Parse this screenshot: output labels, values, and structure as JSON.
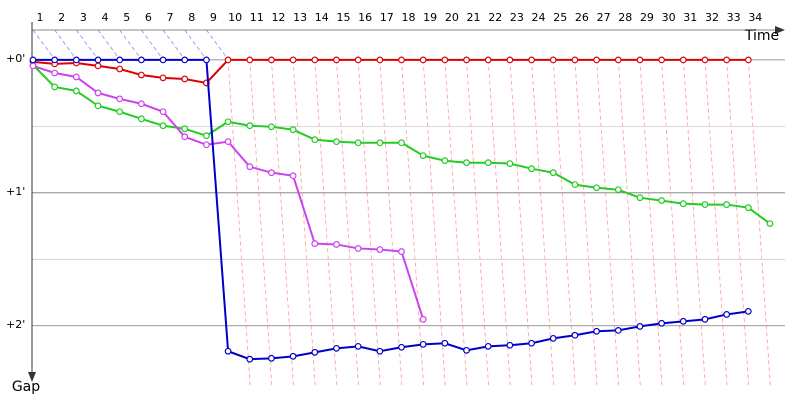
{
  "chart_data": {
    "type": "line",
    "x_label": "Time",
    "y_label": "Gap",
    "categories": [
      "1",
      "2",
      "3",
      "4",
      "5",
      "6",
      "7",
      "8",
      "9",
      "10",
      "11",
      "12",
      "13",
      "14",
      "15",
      "16",
      "17",
      "18",
      "19",
      "20",
      "21",
      "22",
      "23",
      "24",
      "25",
      "26",
      "27",
      "28",
      "29",
      "30",
      "31",
      "32",
      "33",
      "34",
      null
    ],
    "ylim": [
      -13.5,
      149
    ],
    "yticks": [
      {
        "value": 0,
        "label": "+0'"
      },
      {
        "value": 60,
        "label": "+1'"
      },
      {
        "value": 120,
        "label": "+2'"
      }
    ],
    "minor_yticks": [
      30,
      90
    ],
    "grid": true,
    "series": [
      {
        "color": "#dd0000",
        "values": [
          0.9,
          1.8,
          1.4,
          2.7,
          4.1,
          6.8,
          8.1,
          8.6,
          10.4,
          0,
          0,
          0,
          0,
          0,
          0,
          0,
          0,
          0,
          0,
          0,
          0,
          0,
          0,
          0,
          0,
          0,
          0,
          0,
          0,
          0,
          0,
          0,
          0,
          0,
          null
        ]
      },
      {
        "color": "#22cc22",
        "values": [
          2.3,
          12.2,
          14.0,
          20.7,
          23.4,
          26.6,
          29.7,
          31.1,
          34.2,
          27.9,
          29.7,
          30.2,
          31.5,
          36.0,
          36.9,
          37.4,
          37.4,
          37.4,
          43.2,
          45.5,
          46.4,
          46.4,
          46.8,
          49.1,
          50.9,
          56.3,
          57.7,
          58.6,
          62.2,
          63.5,
          64.9,
          65.3,
          65.3,
          66.7,
          73.9
        ]
      },
      {
        "color": "#cc44ee",
        "values": [
          2.7,
          5.9,
          7.7,
          14.9,
          17.6,
          19.8,
          23.4,
          34.7,
          38.3,
          36.9,
          48.2,
          50.9,
          52.3,
          82.9,
          83.3,
          85.1,
          85.6,
          86.5,
          117.1,
          null,
          null,
          null,
          null,
          null,
          null,
          null,
          null,
          null,
          null,
          null,
          null,
          null,
          null,
          null,
          null
        ]
      },
      {
        "color": "#0000cc",
        "values": [
          0,
          0,
          0,
          0,
          0,
          0,
          0,
          0,
          0,
          131.5,
          135.1,
          134.7,
          133.8,
          132.0,
          130.2,
          129.3,
          131.5,
          129.7,
          128.4,
          127.9,
          131.1,
          129.3,
          128.8,
          127.9,
          125.7,
          124.3,
          122.5,
          122.1,
          120.3,
          118.9,
          118.0,
          117.1,
          114.9,
          113.5,
          null
        ]
      }
    ]
  }
}
